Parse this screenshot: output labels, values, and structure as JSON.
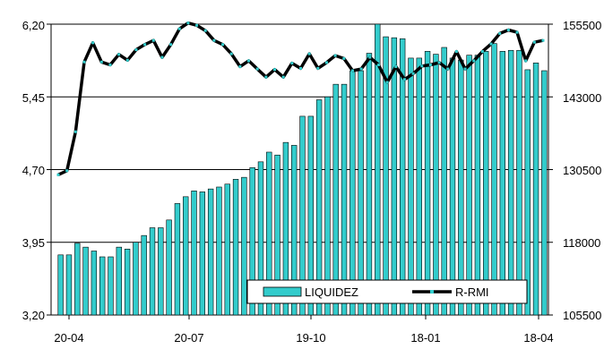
{
  "chart_data": {
    "type": "bar",
    "x_tick_labels": [
      "20-04",
      "20-07",
      "19-10",
      "18-01",
      "18-04"
    ],
    "y_left": {
      "ticks": [
        "3,20",
        "3,95",
        "4,70",
        "5,45",
        "6,20"
      ],
      "ylim": [
        3.2,
        6.2
      ]
    },
    "y_right": {
      "ticks": [
        "105500",
        "118000",
        "130500",
        "143000",
        "155500"
      ],
      "ylim": [
        105500,
        155500
      ]
    },
    "grid": true,
    "legend": {
      "placement": "bottom-right",
      "entries": [
        "LIQUIDEZ",
        "R-RMI"
      ]
    },
    "series": [
      {
        "name": "LIQUIDEZ",
        "type": "bar",
        "axis": "left",
        "color": "#33cccc",
        "values": [
          3.82,
          3.82,
          3.94,
          3.9,
          3.86,
          3.8,
          3.8,
          3.9,
          3.88,
          3.95,
          4.02,
          4.1,
          4.1,
          4.18,
          4.35,
          4.42,
          4.48,
          4.47,
          4.5,
          4.52,
          4.55,
          4.6,
          4.62,
          4.72,
          4.78,
          4.88,
          4.85,
          4.98,
          4.95,
          5.25,
          5.25,
          5.42,
          5.45,
          5.58,
          5.58,
          5.72,
          5.72,
          5.9,
          6.2,
          6.07,
          6.06,
          6.05,
          5.85,
          5.85,
          5.92,
          5.89,
          5.96,
          5.85,
          5.83,
          5.88,
          5.88,
          5.92,
          6.0,
          5.92,
          5.93,
          5.93,
          5.73,
          5.8,
          5.72
        ]
      },
      {
        "name": "R-RMI",
        "type": "line",
        "axis": "right",
        "color": "#000000",
        "values": [
          129600,
          130300,
          137000,
          149000,
          152300,
          149000,
          148500,
          150300,
          149300,
          151100,
          152000,
          152700,
          149800,
          152000,
          154700,
          155700,
          155300,
          154400,
          152700,
          152000,
          150400,
          148200,
          149200,
          147800,
          146400,
          147700,
          146400,
          148800,
          147900,
          150400,
          147900,
          148900,
          150100,
          149600,
          147500,
          147800,
          149800,
          148500,
          145500,
          148200,
          146000,
          147000,
          148300,
          148500,
          148900,
          147800,
          150800,
          147800,
          149200,
          150800,
          152100,
          153900,
          154500,
          154100,
          149200,
          152400,
          152700
        ]
      }
    ]
  }
}
